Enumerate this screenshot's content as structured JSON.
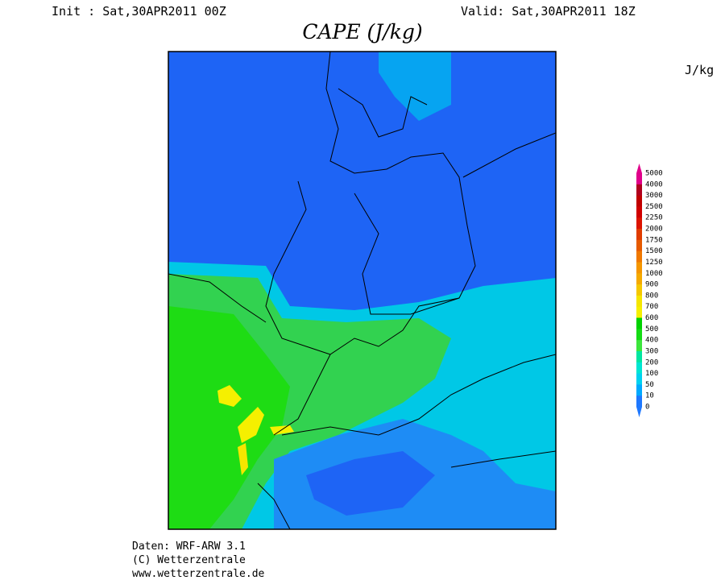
{
  "header": {
    "init": "Init : Sat,30APR2011 00Z",
    "valid": "Valid: Sat,30APR2011 18Z",
    "title": "CAPE (J/kg)"
  },
  "legend": {
    "unit": "J/kg",
    "levels": [
      "5000",
      "4000",
      "3000",
      "2500",
      "2250",
      "2000",
      "1750",
      "1500",
      "1250",
      "1000",
      "900",
      "800",
      "700",
      "600",
      "500",
      "400",
      "300",
      "200",
      "100",
      "50",
      "10",
      "0"
    ],
    "colors": [
      "#e0008a",
      "#b0001e",
      "#c00000",
      "#d00000",
      "#dc1400",
      "#e03c00",
      "#e65a00",
      "#f07800",
      "#f59600",
      "#f5aa00",
      "#f5c800",
      "#f5e600",
      "#f5f000",
      "#00d200",
      "#14dc14",
      "#3ce63c",
      "#00e6a0",
      "#00e6d2",
      "#00d2f0",
      "#00aaff",
      "#1e78ff"
    ]
  },
  "footer": {
    "lines": [
      "Daten: WRF-ARW 3.1",
      "(C) Wetterzentrale",
      "www.wetterzentrale.de"
    ]
  }
}
